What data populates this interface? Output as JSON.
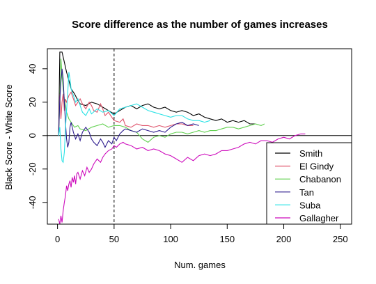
{
  "chart_data": {
    "type": "line",
    "title": "Score difference as the number of games increases",
    "xlabel": "Num. games",
    "ylabel": "Black Score - White Score",
    "xlim": [
      -9,
      260
    ],
    "ylim": [
      -53,
      52
    ],
    "xticks": [
      0,
      50,
      100,
      150,
      200,
      250
    ],
    "yticks": [
      -40,
      -20,
      0,
      20,
      40
    ],
    "reference_lines": {
      "horizontal_y": 0,
      "vertical_dashed_x": 50
    },
    "legend_position": "bottom-right",
    "series": [
      {
        "name": "Smith",
        "color": "#000000",
        "points": [
          [
            1,
            0
          ],
          [
            2,
            50
          ],
          [
            4,
            50
          ],
          [
            6,
            44
          ],
          [
            8,
            38
          ],
          [
            10,
            33
          ],
          [
            12,
            28
          ],
          [
            15,
            25
          ],
          [
            18,
            21
          ],
          [
            20,
            19
          ],
          [
            25,
            18
          ],
          [
            30,
            20
          ],
          [
            35,
            19
          ],
          [
            40,
            17
          ],
          [
            45,
            15
          ],
          [
            50,
            13
          ],
          [
            55,
            15
          ],
          [
            60,
            17
          ],
          [
            65,
            18
          ],
          [
            70,
            16
          ],
          [
            75,
            18
          ],
          [
            80,
            19
          ],
          [
            85,
            17
          ],
          [
            90,
            16
          ],
          [
            95,
            17
          ],
          [
            100,
            15
          ],
          [
            105,
            14
          ],
          [
            110,
            15
          ],
          [
            115,
            14
          ],
          [
            120,
            12
          ],
          [
            125,
            13
          ],
          [
            130,
            11
          ],
          [
            135,
            10
          ],
          [
            140,
            9
          ],
          [
            145,
            10
          ],
          [
            150,
            8
          ],
          [
            155,
            9
          ],
          [
            160,
            8
          ],
          [
            165,
            9
          ],
          [
            170,
            7
          ],
          [
            175,
            7
          ]
        ]
      },
      {
        "name": "El Gindy",
        "color": "#df536b",
        "points": [
          [
            1,
            0
          ],
          [
            2,
            25
          ],
          [
            3,
            10
          ],
          [
            4,
            20
          ],
          [
            5,
            25
          ],
          [
            6,
            15
          ],
          [
            7,
            22
          ],
          [
            8,
            20
          ],
          [
            10,
            24
          ],
          [
            12,
            26
          ],
          [
            14,
            22
          ],
          [
            16,
            18
          ],
          [
            18,
            20
          ],
          [
            20,
            22
          ],
          [
            22,
            19
          ],
          [
            25,
            16
          ],
          [
            28,
            20
          ],
          [
            30,
            18
          ],
          [
            32,
            15
          ],
          [
            35,
            14
          ],
          [
            38,
            19
          ],
          [
            40,
            16
          ],
          [
            42,
            12
          ],
          [
            45,
            14
          ],
          [
            48,
            11
          ],
          [
            50,
            9
          ],
          [
            55,
            8
          ],
          [
            58,
            10
          ],
          [
            60,
            6
          ],
          [
            65,
            5
          ],
          [
            70,
            7
          ],
          [
            75,
            6
          ],
          [
            80,
            6
          ],
          [
            85,
            5
          ],
          [
            90,
            6
          ],
          [
            95,
            5
          ],
          [
            100,
            6
          ],
          [
            105,
            7
          ],
          [
            110,
            7
          ],
          [
            115,
            6
          ],
          [
            120,
            6
          ]
        ]
      },
      {
        "name": "Chabanon",
        "color": "#61d04f",
        "points": [
          [
            1,
            0
          ],
          [
            2,
            20
          ],
          [
            3,
            46
          ],
          [
            4,
            36
          ],
          [
            5,
            28
          ],
          [
            6,
            22
          ],
          [
            7,
            18
          ],
          [
            8,
            14
          ],
          [
            10,
            10
          ],
          [
            12,
            8
          ],
          [
            15,
            5
          ],
          [
            18,
            6
          ],
          [
            20,
            4
          ],
          [
            25,
            3
          ],
          [
            30,
            5
          ],
          [
            35,
            6
          ],
          [
            40,
            7
          ],
          [
            45,
            5
          ],
          [
            50,
            6
          ],
          [
            55,
            6
          ],
          [
            60,
            5
          ],
          [
            65,
            3
          ],
          [
            70,
            2
          ],
          [
            75,
            -2
          ],
          [
            80,
            -4
          ],
          [
            85,
            -1
          ],
          [
            90,
            0
          ],
          [
            95,
            -1
          ],
          [
            100,
            1
          ],
          [
            105,
            2
          ],
          [
            110,
            2
          ],
          [
            115,
            1
          ],
          [
            120,
            2
          ],
          [
            125,
            3
          ],
          [
            130,
            2
          ],
          [
            135,
            3
          ],
          [
            140,
            3
          ],
          [
            145,
            4
          ],
          [
            150,
            5
          ],
          [
            155,
            5
          ],
          [
            160,
            4
          ],
          [
            165,
            5
          ],
          [
            170,
            6
          ],
          [
            175,
            7
          ],
          [
            180,
            6
          ],
          [
            183,
            7
          ]
        ]
      },
      {
        "name": "Tan",
        "color": "#2d1c8e",
        "points": [
          [
            1,
            0
          ],
          [
            2,
            22
          ],
          [
            3,
            32
          ],
          [
            4,
            40
          ],
          [
            5,
            34
          ],
          [
            6,
            20
          ],
          [
            7,
            8
          ],
          [
            8,
            -2
          ],
          [
            9,
            -7
          ],
          [
            10,
            -4
          ],
          [
            11,
            5
          ],
          [
            12,
            8
          ],
          [
            14,
            2
          ],
          [
            16,
            -2
          ],
          [
            18,
            1
          ],
          [
            20,
            -3
          ],
          [
            22,
            2
          ],
          [
            25,
            5
          ],
          [
            28,
            2
          ],
          [
            30,
            -2
          ],
          [
            32,
            -4
          ],
          [
            35,
            -6
          ],
          [
            38,
            -2
          ],
          [
            40,
            -4
          ],
          [
            42,
            -7
          ],
          [
            45,
            -3
          ],
          [
            48,
            -5
          ],
          [
            50,
            -1
          ],
          [
            52,
            -3
          ],
          [
            55,
            1
          ],
          [
            58,
            3
          ],
          [
            60,
            4
          ],
          [
            65,
            3
          ],
          [
            70,
            2
          ],
          [
            75,
            4
          ],
          [
            80,
            3
          ],
          [
            85,
            2
          ],
          [
            90,
            3
          ],
          [
            95,
            2
          ],
          [
            100,
            5
          ],
          [
            105,
            7
          ],
          [
            110,
            8
          ],
          [
            115,
            6
          ],
          [
            120,
            7
          ],
          [
            125,
            6
          ]
        ]
      },
      {
        "name": "Suba",
        "color": "#28e2e5",
        "points": [
          [
            1,
            0
          ],
          [
            2,
            5
          ],
          [
            3,
            -8
          ],
          [
            4,
            -15
          ],
          [
            5,
            -16
          ],
          [
            6,
            -10
          ],
          [
            7,
            4
          ],
          [
            8,
            15
          ],
          [
            9,
            25
          ],
          [
            10,
            38
          ],
          [
            11,
            34
          ],
          [
            12,
            28
          ],
          [
            14,
            24
          ],
          [
            16,
            20
          ],
          [
            18,
            22
          ],
          [
            20,
            18
          ],
          [
            22,
            14
          ],
          [
            25,
            12
          ],
          [
            28,
            16
          ],
          [
            30,
            13
          ],
          [
            35,
            16
          ],
          [
            40,
            14
          ],
          [
            45,
            15
          ],
          [
            50,
            12
          ],
          [
            55,
            16
          ],
          [
            60,
            17
          ],
          [
            65,
            18
          ],
          [
            70,
            19
          ],
          [
            75,
            17
          ],
          [
            80,
            15
          ],
          [
            85,
            14
          ],
          [
            90,
            13
          ],
          [
            95,
            12
          ],
          [
            100,
            11
          ],
          [
            105,
            12
          ],
          [
            110,
            12
          ],
          [
            115,
            10
          ],
          [
            120,
            9
          ],
          [
            125,
            9
          ],
          [
            130,
            8
          ],
          [
            135,
            9
          ]
        ]
      },
      {
        "name": "Gallagher",
        "color": "#cd0bbc",
        "points": [
          [
            1,
            -50
          ],
          [
            2,
            -53
          ],
          [
            3,
            -48
          ],
          [
            4,
            -52
          ],
          [
            5,
            -45
          ],
          [
            6,
            -40
          ],
          [
            7,
            -36
          ],
          [
            8,
            -30
          ],
          [
            9,
            -33
          ],
          [
            10,
            -29
          ],
          [
            11,
            -27
          ],
          [
            12,
            -31
          ],
          [
            13,
            -25
          ],
          [
            14,
            -28
          ],
          [
            15,
            -24
          ],
          [
            16,
            -29
          ],
          [
            17,
            -23
          ],
          [
            18,
            -22
          ],
          [
            20,
            -26
          ],
          [
            22,
            -21
          ],
          [
            24,
            -24
          ],
          [
            26,
            -19
          ],
          [
            28,
            -22
          ],
          [
            30,
            -20
          ],
          [
            32,
            -17
          ],
          [
            35,
            -14
          ],
          [
            38,
            -16
          ],
          [
            40,
            -13
          ],
          [
            42,
            -11
          ],
          [
            45,
            -9
          ],
          [
            48,
            -8
          ],
          [
            50,
            -6
          ],
          [
            52,
            -7
          ],
          [
            55,
            -5
          ],
          [
            58,
            -4
          ],
          [
            60,
            -5
          ],
          [
            65,
            -6
          ],
          [
            70,
            -8
          ],
          [
            75,
            -7
          ],
          [
            80,
            -9
          ],
          [
            85,
            -8
          ],
          [
            90,
            -9
          ],
          [
            95,
            -11
          ],
          [
            100,
            -12
          ],
          [
            105,
            -14
          ],
          [
            110,
            -16
          ],
          [
            115,
            -13
          ],
          [
            120,
            -15
          ],
          [
            125,
            -12
          ],
          [
            130,
            -11
          ],
          [
            135,
            -12
          ],
          [
            140,
            -11
          ],
          [
            145,
            -9
          ],
          [
            150,
            -9
          ],
          [
            155,
            -8
          ],
          [
            160,
            -7
          ],
          [
            165,
            -5
          ],
          [
            170,
            -4
          ],
          [
            175,
            -5
          ],
          [
            180,
            -3
          ],
          [
            185,
            -3
          ],
          [
            190,
            -4
          ],
          [
            195,
            -2
          ],
          [
            200,
            -1
          ],
          [
            205,
            -2
          ],
          [
            210,
            0
          ],
          [
            215,
            1
          ],
          [
            219,
            1
          ]
        ]
      }
    ]
  }
}
